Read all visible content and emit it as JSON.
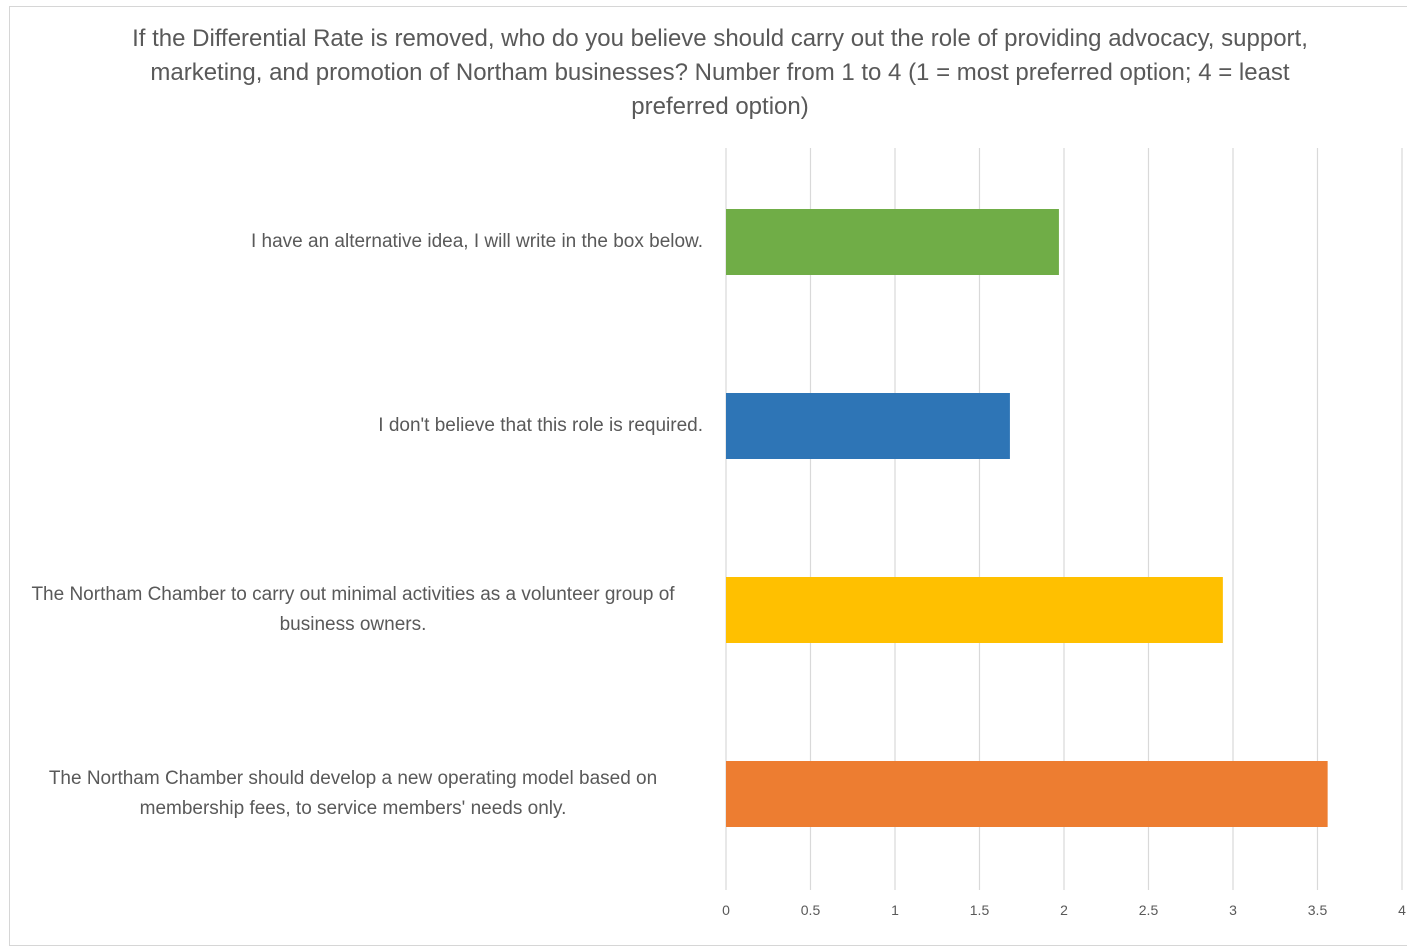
{
  "chart_data": {
    "type": "bar",
    "orientation": "horizontal",
    "title": "If the Differential Rate is removed, who do you believe should carry out the role of providing advocacy, support, marketing, and promotion of Northam businesses? Number from 1 to 4 (1 = most preferred option; 4 = least preferred option)",
    "xlabel": "",
    "ylabel": "",
    "xlim": [
      0,
      4
    ],
    "grid": true,
    "legend": "none",
    "x_ticks": [
      "0",
      "0.5",
      "1",
      "1.5",
      "2",
      "2.5",
      "3",
      "3.5",
      "4"
    ],
    "categories": [
      "I have an alternative idea, I will write in the box below.",
      "I don't believe that this role is required.",
      "The Northam Chamber to carry out minimal activities as a volunteer group of business owners.",
      "The Northam Chamber should develop a new operating model based on membership fees, to service members' needs only."
    ],
    "values": [
      1.97,
      1.68,
      2.94,
      3.56
    ],
    "colors": [
      "#70AD47",
      "#2E75B6",
      "#FFC000",
      "#ED7D31"
    ]
  }
}
